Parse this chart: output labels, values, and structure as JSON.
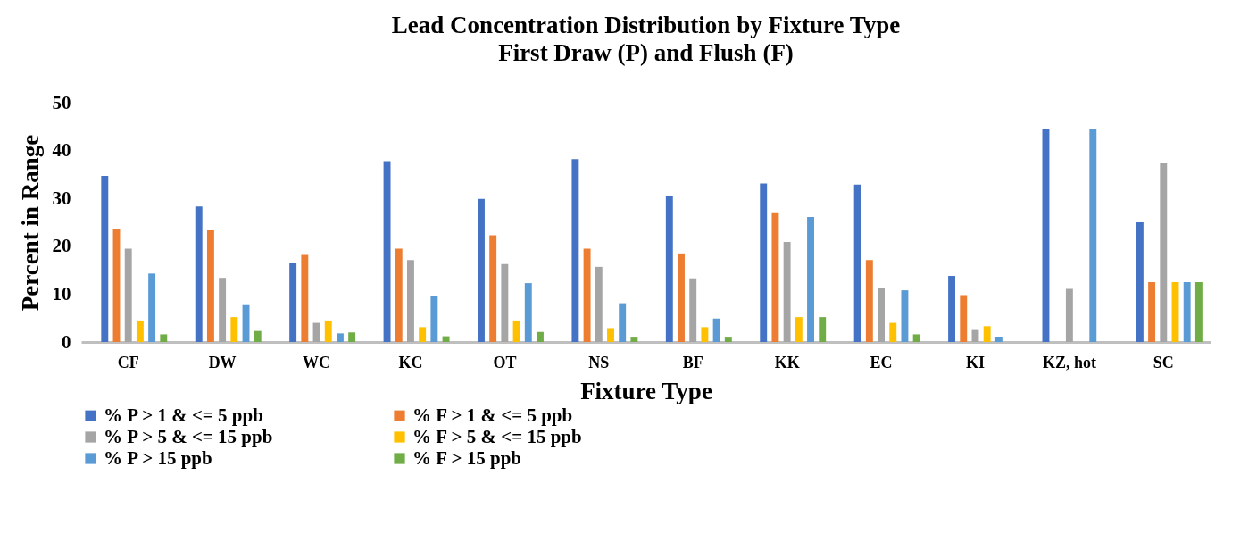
{
  "chart_data": {
    "type": "bar",
    "title": "Lead Concentration Distribution by Fixture Type",
    "subtitle": "First Draw (P) and Flush (F)",
    "xlabel": "Fixture Type",
    "ylabel": "Percent in Range",
    "categories": [
      "CF",
      "DW",
      "WC",
      "KC",
      "OT",
      "NS",
      "BF",
      "KK",
      "EC",
      "KI",
      "KZ, hot",
      "SC"
    ],
    "series": [
      {
        "name": "% P > 1 & <= 5 ppb",
        "color": "#4472c4",
        "values": [
          34.7,
          28.3,
          16.4,
          37.8,
          29.9,
          38.2,
          30.6,
          33.1,
          32.9,
          13.8,
          44.4,
          25.0
        ]
      },
      {
        "name": "% F > 1 & <= 5 ppb",
        "color": "#ed7d31",
        "values": [
          23.5,
          23.3,
          18.2,
          19.5,
          22.3,
          19.5,
          18.5,
          27.1,
          17.1,
          9.8,
          0,
          12.5
        ]
      },
      {
        "name": "% P > 5 & <= 15 ppb",
        "color": "#a5a5a5",
        "values": [
          19.5,
          13.4,
          4.0,
          17.1,
          16.3,
          15.7,
          13.3,
          20.9,
          11.3,
          2.5,
          11.1,
          37.5
        ]
      },
      {
        "name": "% F > 5 & <= 15 ppb",
        "color": "#ffc000",
        "values": [
          4.5,
          5.2,
          4.5,
          3.1,
          4.5,
          2.9,
          3.1,
          5.2,
          4.0,
          3.3,
          0,
          12.5
        ]
      },
      {
        "name": "% P > 15 ppb",
        "color": "#5b9bd5",
        "values": [
          14.3,
          7.7,
          1.8,
          9.6,
          12.3,
          8.1,
          4.9,
          26.1,
          10.8,
          1.1,
          44.4,
          12.5
        ]
      },
      {
        "name": "% F > 15 ppb",
        "color": "#70ad47",
        "values": [
          1.6,
          2.3,
          2.0,
          1.2,
          2.1,
          1.1,
          1.1,
          5.2,
          1.6,
          0,
          0,
          12.5
        ]
      }
    ],
    "ylim": [
      0,
      50
    ],
    "yticks": [
      0,
      10,
      20,
      30,
      40,
      50
    ],
    "grid": false,
    "legend": "bottom"
  }
}
